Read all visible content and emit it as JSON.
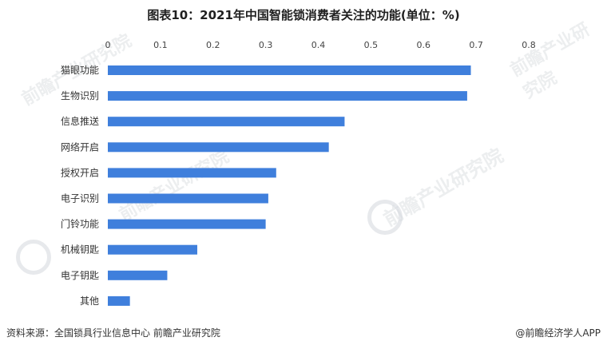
{
  "title": "图表10：2021年中国智能锁消费者关注的功能(单位：%)",
  "footer": {
    "source": "资料来源：全国锁具行业信息中心 前瞻产业研究院",
    "credit": "@前瞻经济学人APP"
  },
  "watermark": {
    "text": "前瞻产业研究院"
  },
  "chart_data": {
    "type": "bar",
    "orientation": "horizontal",
    "title": "图表10：2021年中国智能锁消费者关注的功能(单位：%)",
    "categories": [
      "猫眼功能",
      "生物识别",
      "信息推送",
      "网络开启",
      "授权开启",
      "电子识别",
      "门铃功能",
      "机械钥匙",
      "电子钥匙",
      "其他"
    ],
    "values": [
      0.69,
      0.683,
      0.45,
      0.42,
      0.32,
      0.305,
      0.3,
      0.17,
      0.113,
      0.042
    ],
    "xlim": [
      0,
      0.8
    ],
    "x_ticks": [
      "0",
      "0.1",
      "0.2",
      "0.3",
      "0.4",
      "0.5",
      "0.6",
      "0.7",
      "0.8"
    ],
    "x_axis_position": "top",
    "grid": false,
    "bar_color": "#3f7fdc"
  }
}
